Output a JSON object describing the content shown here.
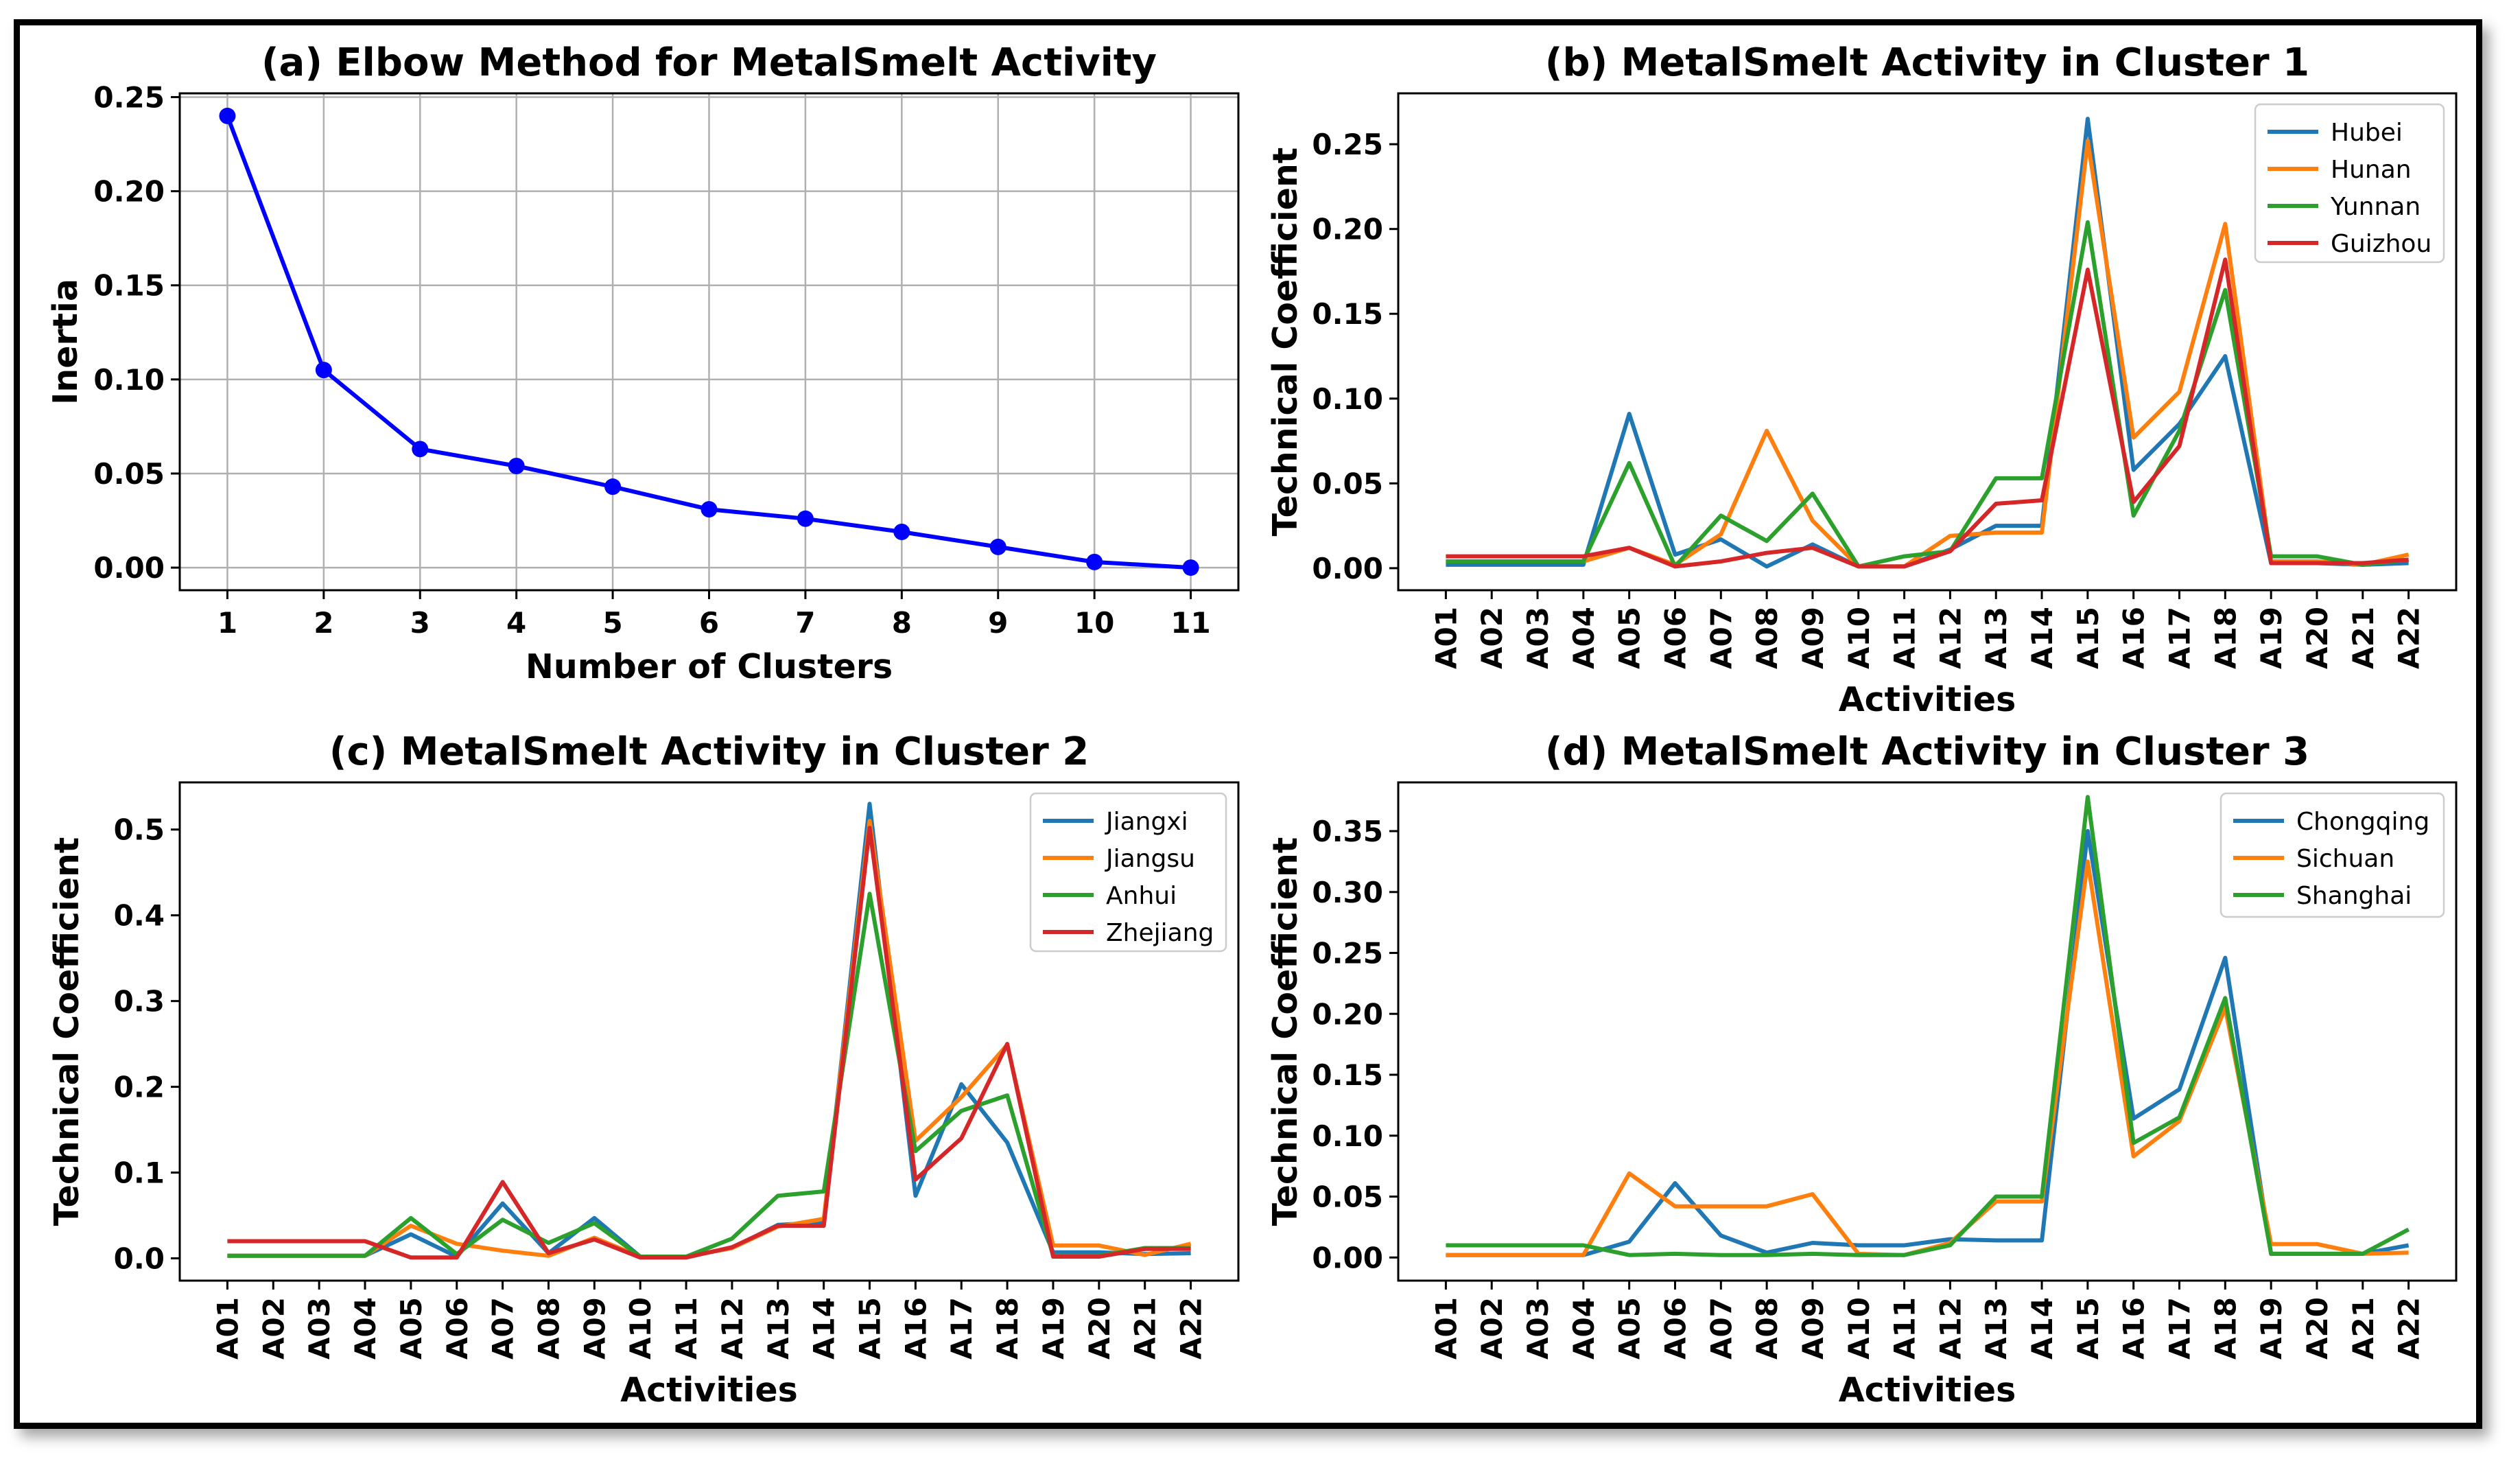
{
  "chart_data": [
    {
      "id": "a",
      "type": "line",
      "title": "(a) Elbow Method for MetalSmelt Activity",
      "xlabel": "Number of Clusters",
      "ylabel": "Inertia",
      "x": [
        1,
        2,
        3,
        4,
        5,
        6,
        7,
        8,
        9,
        10,
        11
      ],
      "xticks": [
        "1",
        "2",
        "3",
        "4",
        "5",
        "6",
        "7",
        "8",
        "9",
        "10",
        "11"
      ],
      "ylim": [
        -0.012,
        0.252
      ],
      "yticks": [
        "0.00",
        "0.05",
        "0.10",
        "0.15",
        "0.20",
        "0.25"
      ],
      "grid": true,
      "series": [
        {
          "name": "Inertia",
          "color": "#0000ff",
          "markers": true,
          "values": [
            0.24,
            0.105,
            0.063,
            0.054,
            0.043,
            0.031,
            0.026,
            0.019,
            0.011,
            0.003,
            0.0
          ]
        }
      ]
    },
    {
      "id": "b",
      "type": "line",
      "title": "(b) MetalSmelt Activity in Cluster 1",
      "xlabel": "Activities",
      "ylabel": "Technical Coefficient",
      "categories": [
        "A01",
        "A02",
        "A03",
        "A04",
        "A05",
        "A06",
        "A07",
        "A08",
        "A09",
        "A10",
        "A11",
        "A12",
        "A13",
        "A14",
        "A15",
        "A16",
        "A17",
        "A18",
        "A19",
        "A20",
        "A21",
        "A22"
      ],
      "ylim": [
        -0.013,
        0.28
      ],
      "yticks": [
        "0.00",
        "0.05",
        "0.10",
        "0.15",
        "0.20",
        "0.25"
      ],
      "grid": false,
      "legend": "top-right",
      "series": [
        {
          "name": "Hubei",
          "color": "#1f77b4",
          "values": [
            0.002,
            0.002,
            0.002,
            0.002,
            0.091,
            0.008,
            0.017,
            0.001,
            0.014,
            0.001,
            0.001,
            0.011,
            0.025,
            0.025,
            0.265,
            0.058,
            0.085,
            0.125,
            0.003,
            0.003,
            0.002,
            0.003
          ]
        },
        {
          "name": "Hunan",
          "color": "#ff7f0e",
          "values": [
            0.004,
            0.004,
            0.004,
            0.004,
            0.012,
            0.002,
            0.02,
            0.081,
            0.028,
            0.001,
            0.001,
            0.019,
            0.021,
            0.021,
            0.252,
            0.077,
            0.104,
            0.203,
            0.004,
            0.004,
            0.002,
            0.008
          ]
        },
        {
          "name": "Yunnan",
          "color": "#2ca02c",
          "values": [
            0.004,
            0.004,
            0.004,
            0.004,
            0.062,
            0.001,
            0.031,
            0.016,
            0.044,
            0.001,
            0.007,
            0.01,
            0.053,
            0.053,
            0.204,
            0.031,
            0.081,
            0.164,
            0.007,
            0.007,
            0.002,
            0.005
          ]
        },
        {
          "name": "Guizhou",
          "color": "#d62728",
          "values": [
            0.007,
            0.007,
            0.007,
            0.007,
            0.012,
            0.001,
            0.004,
            0.009,
            0.012,
            0.001,
            0.001,
            0.01,
            0.038,
            0.04,
            0.176,
            0.039,
            0.072,
            0.182,
            0.003,
            0.003,
            0.003,
            0.005
          ]
        }
      ]
    },
    {
      "id": "c",
      "type": "line",
      "title": "(c) MetalSmelt Activity in Cluster 2",
      "xlabel": "Activities",
      "ylabel": "Technical Coefficient",
      "categories": [
        "A01",
        "A02",
        "A03",
        "A04",
        "A05",
        "A06",
        "A07",
        "A08",
        "A09",
        "A10",
        "A11",
        "A12",
        "A13",
        "A14",
        "A15",
        "A16",
        "A17",
        "A18",
        "A19",
        "A20",
        "A21",
        "A22"
      ],
      "ylim": [
        -0.026,
        0.555
      ],
      "yticks": [
        "0.0",
        "0.1",
        "0.2",
        "0.3",
        "0.4",
        "0.5"
      ],
      "grid": false,
      "legend": "top-right",
      "series": [
        {
          "name": "Jiangxi",
          "color": "#1f77b4",
          "values": [
            0.003,
            0.003,
            0.003,
            0.003,
            0.028,
            0.002,
            0.064,
            0.006,
            0.047,
            0.002,
            0.002,
            0.012,
            0.039,
            0.042,
            0.53,
            0.073,
            0.203,
            0.135,
            0.007,
            0.007,
            0.005,
            0.006
          ]
        },
        {
          "name": "Jiangsu",
          "color": "#ff7f0e",
          "values": [
            0.003,
            0.003,
            0.003,
            0.003,
            0.038,
            0.017,
            0.009,
            0.003,
            0.024,
            0.002,
            0.002,
            0.012,
            0.037,
            0.046,
            0.51,
            0.137,
            0.188,
            0.249,
            0.015,
            0.015,
            0.004,
            0.017
          ]
        },
        {
          "name": "Anhui",
          "color": "#2ca02c",
          "values": [
            0.003,
            0.003,
            0.003,
            0.003,
            0.047,
            0.005,
            0.045,
            0.018,
            0.041,
            0.002,
            0.002,
            0.023,
            0.073,
            0.078,
            0.425,
            0.125,
            0.172,
            0.19,
            0.003,
            0.003,
            0.012,
            0.012
          ]
        },
        {
          "name": "Zhejiang",
          "color": "#d62728",
          "values": [
            0.02,
            0.02,
            0.02,
            0.02,
            0.001,
            0.001,
            0.089,
            0.006,
            0.022,
            0.001,
            0.001,
            0.013,
            0.038,
            0.038,
            0.502,
            0.092,
            0.14,
            0.25,
            0.002,
            0.002,
            0.011,
            0.011
          ]
        }
      ]
    },
    {
      "id": "d",
      "type": "line",
      "title": "(d) MetalSmelt Activity in Cluster 3",
      "xlabel": "Activities",
      "ylabel": "Technical Coefficient",
      "categories": [
        "A01",
        "A02",
        "A03",
        "A04",
        "A05",
        "A06",
        "A07",
        "A08",
        "A09",
        "A10",
        "A11",
        "A12",
        "A13",
        "A14",
        "A15",
        "A16",
        "A17",
        "A18",
        "A19",
        "A20",
        "A21",
        "A22"
      ],
      "ylim": [
        -0.019,
        0.39
      ],
      "yticks": [
        "0.00",
        "0.05",
        "0.10",
        "0.15",
        "0.20",
        "0.25",
        "0.30",
        "0.35"
      ],
      "grid": false,
      "legend": "top-right",
      "series": [
        {
          "name": "Chongqing",
          "color": "#1f77b4",
          "values": [
            0.002,
            0.002,
            0.002,
            0.002,
            0.013,
            0.061,
            0.018,
            0.004,
            0.012,
            0.01,
            0.01,
            0.015,
            0.014,
            0.014,
            0.35,
            0.114,
            0.138,
            0.246,
            0.003,
            0.003,
            0.003,
            0.01
          ]
        },
        {
          "name": "Sichuan",
          "color": "#ff7f0e",
          "values": [
            0.002,
            0.002,
            0.002,
            0.002,
            0.069,
            0.042,
            0.042,
            0.042,
            0.052,
            0.003,
            0.002,
            0.012,
            0.046,
            0.046,
            0.325,
            0.083,
            0.112,
            0.205,
            0.011,
            0.011,
            0.003,
            0.004
          ]
        },
        {
          "name": "Shanghai",
          "color": "#2ca02c",
          "values": [
            0.01,
            0.01,
            0.01,
            0.01,
            0.002,
            0.003,
            0.002,
            0.002,
            0.003,
            0.002,
            0.002,
            0.01,
            0.05,
            0.05,
            0.378,
            0.094,
            0.115,
            0.213,
            0.003,
            0.003,
            0.003,
            0.023
          ]
        }
      ]
    }
  ]
}
